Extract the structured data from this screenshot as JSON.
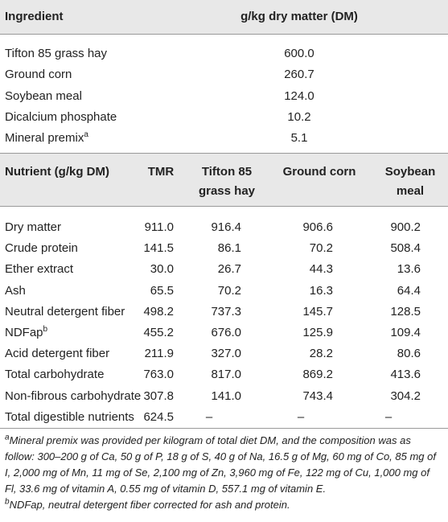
{
  "table1": {
    "header": [
      "Ingredient",
      "g/kg dry matter (DM)"
    ],
    "rows": [
      [
        "Tifton 85 grass hay",
        "600.0"
      ],
      [
        "Ground corn",
        "260.7"
      ],
      [
        "Soybean meal",
        "124.0"
      ],
      [
        "Dicalcium phosphate",
        "10.2"
      ],
      [
        {
          "text": "Mineral premix",
          "sup": "a"
        },
        "5.1"
      ]
    ]
  },
  "table2": {
    "header": [
      "Nutrient (g/kg DM)",
      "TMR",
      "Tifton 85 grass hay",
      "Ground corn",
      "Soybean meal"
    ],
    "rows": [
      [
        "Dry matter",
        "911.0",
        "916.4",
        "906.6",
        "900.2"
      ],
      [
        "Crude protein",
        "141.5",
        "86.1",
        "70.2",
        "508.4"
      ],
      [
        "Ether extract",
        "30.0",
        "26.7",
        "44.3",
        "13.6"
      ],
      [
        "Ash",
        "65.5",
        "70.2",
        "16.3",
        "64.4"
      ],
      [
        "Neutral detergent fiber",
        "498.2",
        "737.3",
        "145.7",
        "128.5"
      ],
      [
        {
          "text": "NDFap",
          "sup": "b"
        },
        "455.2",
        "676.0",
        "125.9",
        "109.4"
      ],
      [
        "Acid detergent fiber",
        "211.9",
        "327.0",
        "28.2",
        "80.6"
      ],
      [
        "Total carbohydrate",
        "763.0",
        "817.0",
        "869.2",
        "413.6"
      ],
      [
        "Non-fibrous carbohydrate",
        "307.8",
        "141.0",
        "743.4",
        "304.2"
      ],
      [
        "Total digestible nutrients",
        "624.5",
        "–",
        "–",
        "–"
      ]
    ]
  },
  "footnotes": [
    {
      "sup": "a",
      "text": "Mineral premix was provided per kilogram of total diet DM, and the composition was as follow: 300–200 g of Ca, 50 g of P, 18 g of S, 40 g of Na, 16.5 g of Mg, 60 mg of Co, 85 mg of I, 2,000 mg of Mn, 11 mg of Se, 2,100 mg of Zn, 3,960 mg of Fe, 122 mg of Cu, 1,000 mg of Fl, 33.6 mg of vitamin A, 0.55 mg of vitamin D, 557.1 mg of vitamin E."
    },
    {
      "sup": "b",
      "text": "NDFap, neutral detergent fiber corrected for ash and protein."
    }
  ]
}
